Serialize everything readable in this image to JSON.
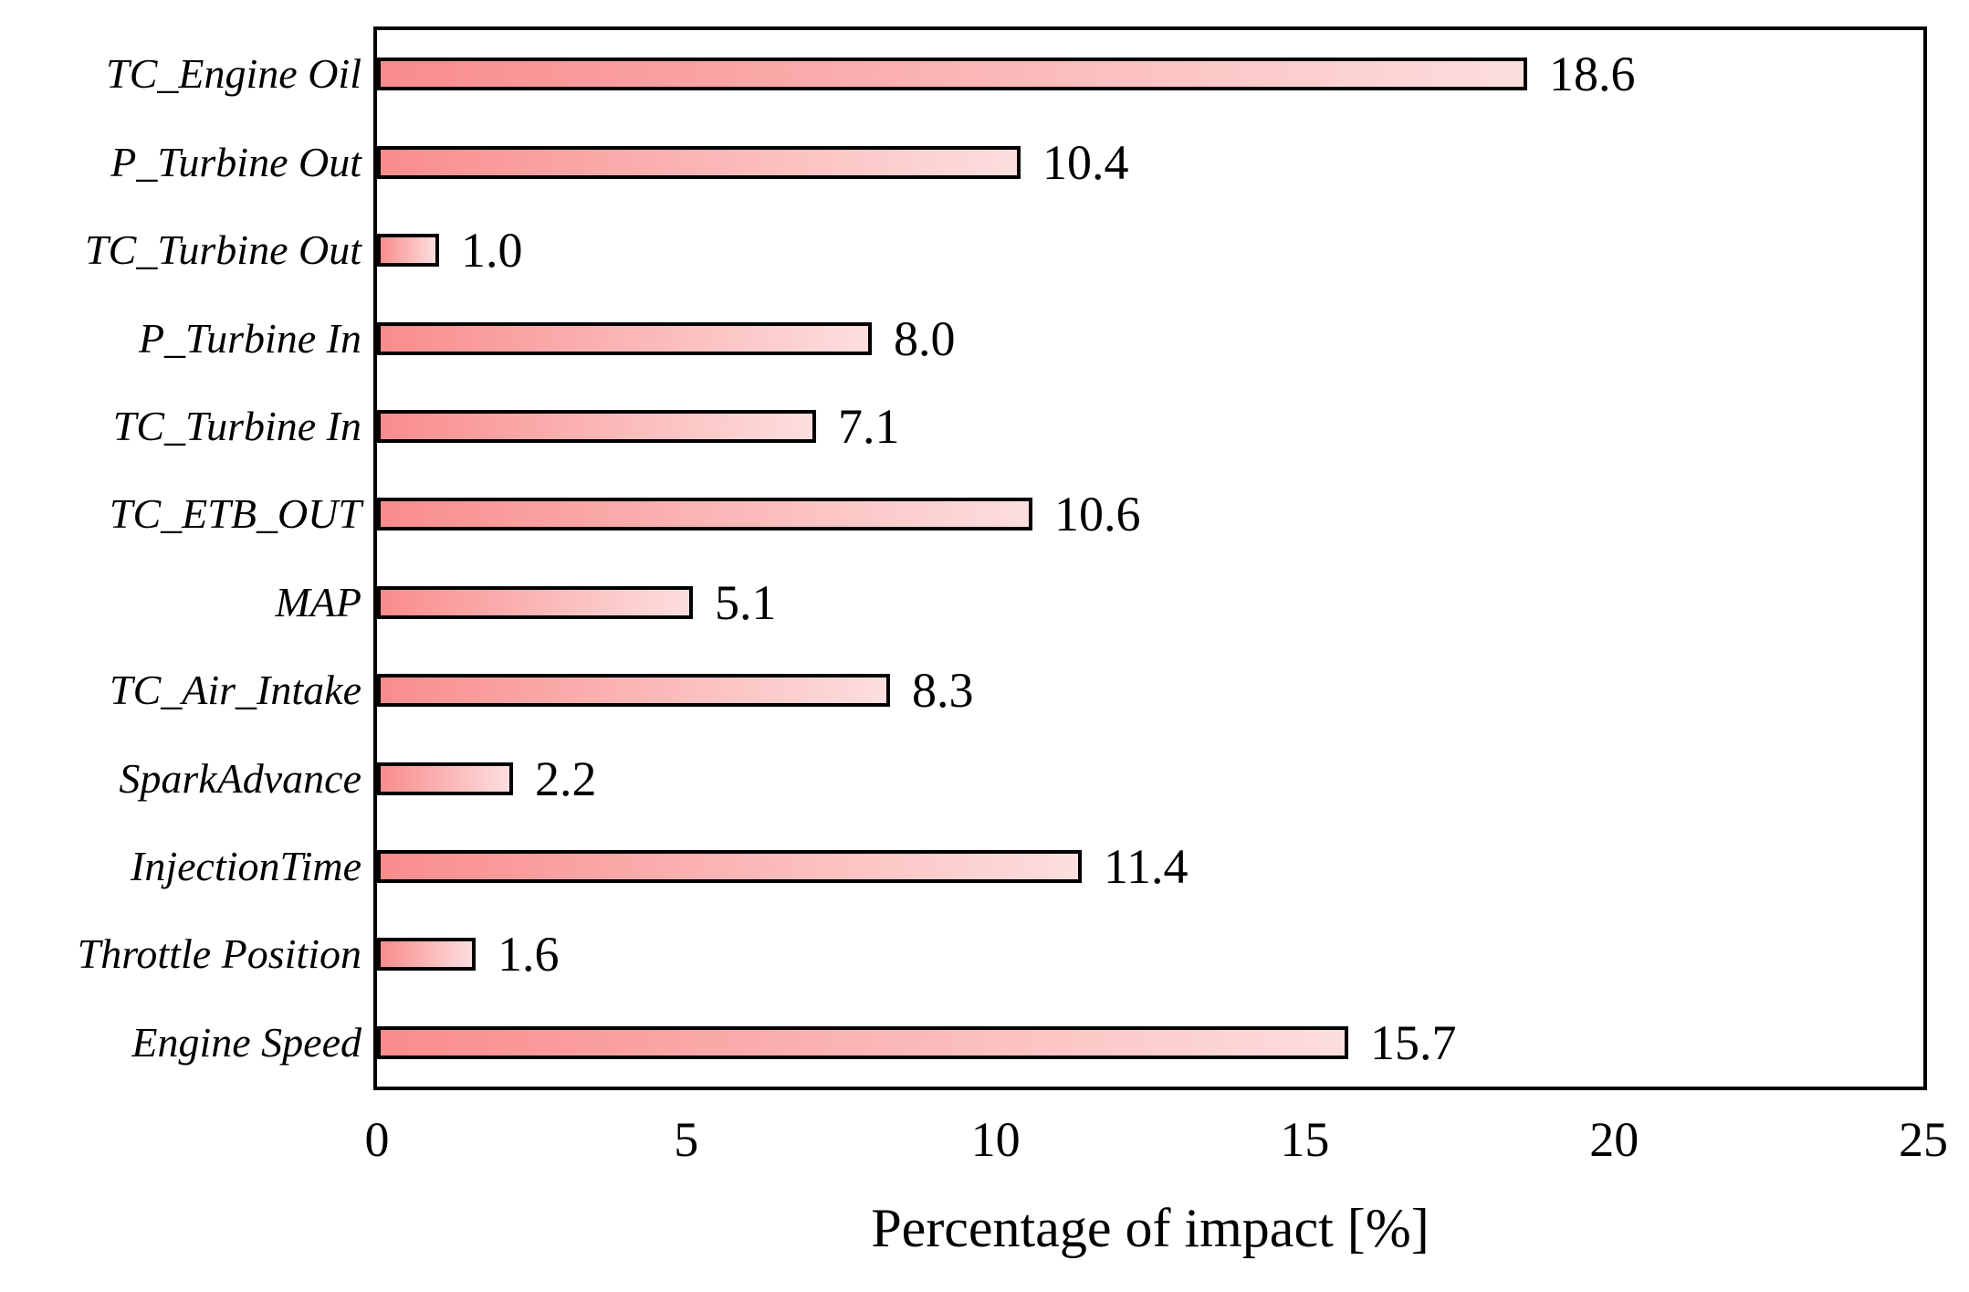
{
  "chart_data": {
    "type": "bar",
    "orientation": "horizontal",
    "title": "",
    "xlabel": "Percentage of impact [%]",
    "ylabel": "",
    "categories": [
      "TC_Engine Oil",
      "P_Turbine Out",
      "TC_Turbine Out",
      "P_Turbine In",
      "TC_Turbine In",
      "TC_ETB_OUT",
      "MAP",
      "TC_Air_Intake",
      "SparkAdvance",
      "InjectionTime",
      "Throttle Position",
      "Engine Speed"
    ],
    "values": [
      18.6,
      10.4,
      1.0,
      8.0,
      7.1,
      10.6,
      5.1,
      8.3,
      2.2,
      11.4,
      1.6,
      15.7
    ],
    "value_labels": [
      "18.6",
      "10.4",
      "1.0",
      "8.0",
      "7.1",
      "10.6",
      "5.1",
      "8.3",
      "2.2",
      "11.4",
      "1.6",
      "15.7"
    ],
    "xlim": [
      0,
      25
    ],
    "xticks": [
      0,
      5,
      10,
      15,
      20,
      25
    ],
    "xtick_labels": [
      "0",
      "5",
      "10",
      "15",
      "20",
      "25"
    ],
    "grid": "off",
    "legend": "none",
    "colors": {
      "bar_gradient_start": "#F98C8C",
      "bar_gradient_end": "#FDDEDE",
      "bar_border": "#000000",
      "axis_border": "#000000",
      "text": "#000000",
      "background": "#FFFFFF"
    }
  }
}
